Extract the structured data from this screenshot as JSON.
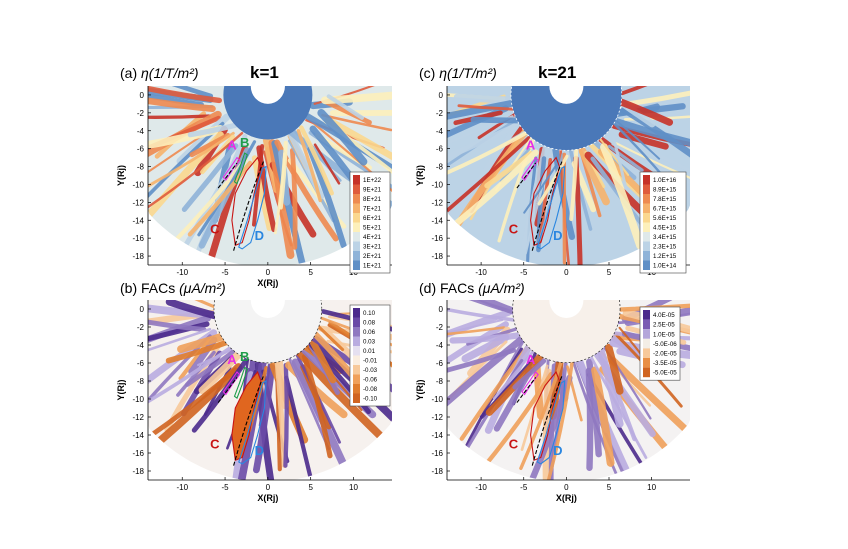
{
  "figure": {
    "panels": [
      {
        "id": "a",
        "title_prefix": "(a) ",
        "title_symbol": "η",
        "title_units": "(1/T/m²)",
        "k_label": "k=1",
        "legend_type": "eta"
      },
      {
        "id": "c",
        "title_prefix": "(c) ",
        "title_symbol": "η",
        "title_units": "(1/T/m²)",
        "k_label": "k=21",
        "legend_type": "eta"
      },
      {
        "id": "b",
        "title_prefix": "(b) FACs ",
        "title_symbol": "",
        "title_units": "(μA/m²)",
        "k_label": "",
        "legend_type": "fac"
      },
      {
        "id": "d",
        "title_prefix": "(d) FACs ",
        "title_symbol": "",
        "title_units": "(μA/m²)",
        "k_label": "",
        "legend_type": "fac"
      }
    ],
    "region_labels": {
      "A": {
        "text": "A",
        "color": "#e62ee6"
      },
      "B": {
        "text": "B",
        "color": "#1f9d4a"
      },
      "C": {
        "text": "C",
        "color": "#c81414"
      },
      "D": {
        "text": "D",
        "color": "#2a86e0"
      }
    }
  },
  "chart_data": [
    {
      "panel": "a",
      "type": "heatmap",
      "title": "(a) η (1/T/m²)",
      "annotation": "k=1",
      "xlabel": "X(Rj)",
      "ylabel": "Y(Rj)",
      "xlim": [
        -14,
        14.5
      ],
      "ylim": [
        -19,
        1
      ],
      "xticks": [
        -10,
        -5,
        0,
        5,
        10
      ],
      "yticks": [
        0,
        -2,
        -4,
        -6,
        -8,
        -10,
        -12,
        -14,
        -16,
        -18
      ],
      "colorbar": {
        "labels": [
          "1E+22",
          "9E+21",
          "8E+21",
          "7E+21",
          "6E+21",
          "5E+21",
          "4E+21",
          "3E+21",
          "2E+21",
          "1E+21"
        ],
        "colors": [
          "#c63228",
          "#df5b3c",
          "#ee8a50",
          "#f6b26c",
          "#fbd88f",
          "#fdf0bb",
          "#dfe9ea",
          "#bcd3e6",
          "#8fb3d8",
          "#5f8fc6"
        ]
      },
      "regions": [
        "A",
        "B",
        "C",
        "D"
      ]
    },
    {
      "panel": "c",
      "type": "heatmap",
      "title": "(c) η (1/T/m²)",
      "annotation": "k=21",
      "xlabel": "",
      "ylabel": "Y(Rj)",
      "xlim": [
        -14,
        14.5
      ],
      "ylim": [
        -19,
        1
      ],
      "xticks": [
        -10,
        -5,
        0,
        5,
        10
      ],
      "yticks": [
        0,
        -2,
        -4,
        -6,
        -8,
        -10,
        -12,
        -14,
        -16,
        -18
      ],
      "colorbar": {
        "labels": [
          "1.0E+16",
          "8.9E+15",
          "7.8E+15",
          "6.7E+15",
          "5.6E+15",
          "4.5E+15",
          "3.4E+15",
          "2.3E+15",
          "1.2E+15",
          "1.0E+14"
        ],
        "colors": [
          "#c63228",
          "#df5b3c",
          "#ee8a50",
          "#f6b26c",
          "#fbd88f",
          "#fdf0bb",
          "#dfe9ea",
          "#bcd3e6",
          "#8fb3d8",
          "#5f8fc6"
        ]
      },
      "regions": [
        "A",
        "C",
        "D"
      ]
    },
    {
      "panel": "b",
      "type": "heatmap",
      "title": "(b) FACs (μA/m²)",
      "xlabel": "X(Rj)",
      "ylabel": "Y(Rj)",
      "xlim": [
        -14,
        14.5
      ],
      "ylim": [
        -19,
        1
      ],
      "xticks": [
        -10,
        -5,
        0,
        5,
        10
      ],
      "yticks": [
        0,
        -2,
        -4,
        -6,
        -8,
        -10,
        -12,
        -14,
        -16,
        -18
      ],
      "colorbar": {
        "labels": [
          "0.10",
          "0.08",
          "0.06",
          "0.03",
          "0.01",
          "-0.01",
          "-0.03",
          "-0.06",
          "-0.08",
          "-0.10"
        ],
        "colors": [
          "#4b2a8c",
          "#6a4aa6",
          "#8f78c0",
          "#b9ace0",
          "#e5e0f0",
          "#faeee0",
          "#f7c99a",
          "#f0a05a",
          "#e07d2e",
          "#d06420"
        ]
      },
      "regions": [
        "A",
        "B",
        "C",
        "D"
      ]
    },
    {
      "panel": "d",
      "type": "heatmap",
      "title": "(d) FACs (μA/m²)",
      "xlabel": "X(Rj)",
      "ylabel": "Y(Rj)",
      "xlim": [
        -14,
        14.5
      ],
      "ylim": [
        -19,
        1
      ],
      "xticks": [
        -10,
        -5,
        0,
        5,
        10
      ],
      "yticks": [
        0,
        -2,
        -4,
        -6,
        -8,
        -10,
        -12,
        -14,
        -16,
        -18
      ],
      "colorbar": {
        "labels": [
          "4.0E-05",
          "2.5E-05",
          "1.0E-05",
          "-5.0E-06",
          "-2.0E-05",
          "-3.5E-05",
          "-5.0E-05"
        ],
        "colors": [
          "#4b2a8c",
          "#7a5bb3",
          "#b4a6da",
          "#f3eee6",
          "#f7c99a",
          "#e98f45",
          "#d06420"
        ]
      },
      "regions": [
        "A",
        "C",
        "D"
      ]
    }
  ]
}
